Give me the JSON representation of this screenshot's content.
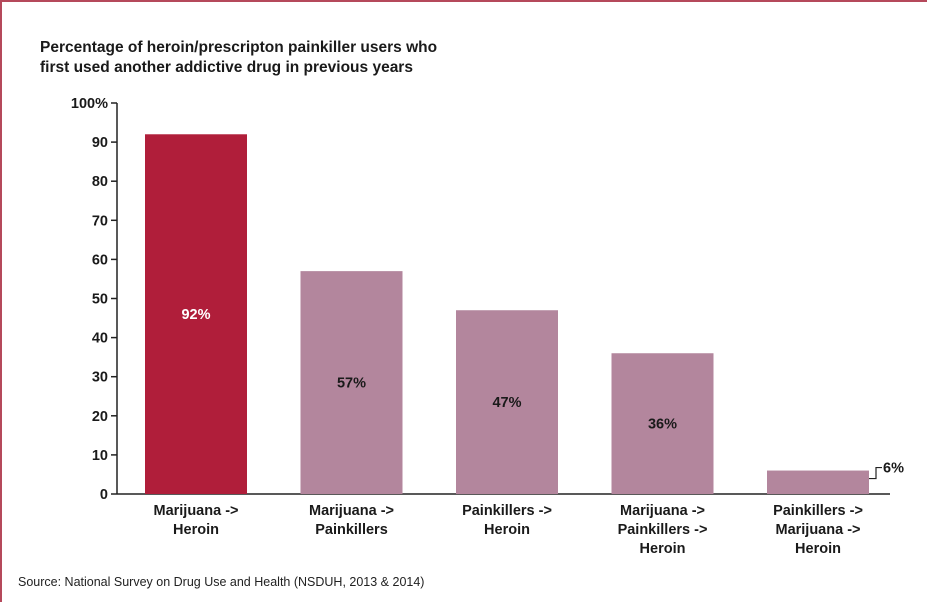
{
  "chart_data": {
    "type": "bar",
    "title": "Percentage of heroin/prescripton painkiller users who\nfirst used another addictive drug in previous years",
    "categories": [
      [
        "Marijuana ->",
        "Heroin"
      ],
      [
        "Marijuana ->",
        "Painkillers"
      ],
      [
        "Painkillers ->",
        "Heroin"
      ],
      [
        "Marijuana ->",
        "Painkillers ->",
        "Heroin"
      ],
      [
        "Painkillers ->",
        "Marijuana ->",
        "Heroin"
      ]
    ],
    "values": [
      92,
      57,
      47,
      36,
      6
    ],
    "data_labels": [
      "92%",
      "57%",
      "47%",
      "36%",
      "6%"
    ],
    "ylim": [
      0,
      100
    ],
    "yticks": [
      0,
      10,
      20,
      30,
      40,
      50,
      60,
      70,
      80,
      90,
      100
    ],
    "ytick_labels": [
      "0",
      "10",
      "20",
      "30",
      "40",
      "50",
      "60",
      "70",
      "80",
      "90",
      "100%"
    ],
    "colors": [
      "#b01e3a",
      "#b3869d",
      "#b3869d",
      "#b3869d",
      "#b3869d"
    ],
    "label_colors": [
      "#ffffff",
      "#1a1a1a",
      "#1a1a1a",
      "#1a1a1a",
      "#1a1a1a"
    ],
    "grid": false,
    "xlabel": "",
    "ylabel": ""
  },
  "source": "Source:  National Survey on Drug Use and Health (NSDUH, 2013 & 2014)"
}
